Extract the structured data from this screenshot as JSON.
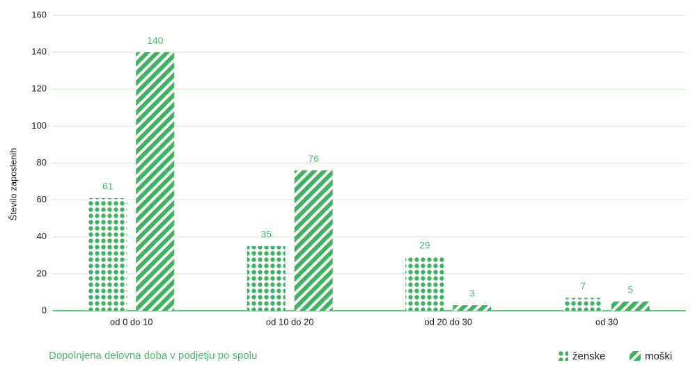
{
  "chart_data": {
    "type": "bar",
    "title": "Dopolnjena delovna doba v podjetju po spolu",
    "y_label": "Število zaposlenih",
    "categories": [
      "od 0 do 10",
      "od 10 do 20",
      "od 20 do 30",
      "od 30"
    ],
    "series": [
      {
        "name": "ženske",
        "color": "#3fb35f",
        "pattern": "dots",
        "values": [
          61,
          35,
          29,
          7
        ]
      },
      {
        "name": "moški",
        "color": "#3fb35f",
        "pattern": "stripes",
        "values": [
          140,
          76,
          3,
          5
        ]
      }
    ],
    "ylim": [
      0,
      160
    ],
    "yticks": [
      0,
      20,
      40,
      60,
      80,
      100,
      120,
      140,
      160
    ],
    "grid": true,
    "legend": "bottom-right"
  }
}
